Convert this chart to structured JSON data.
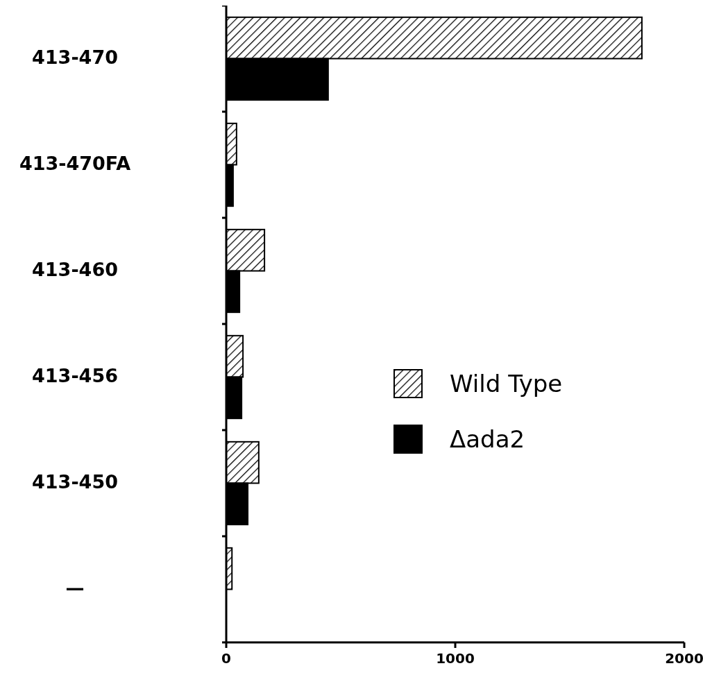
{
  "chart_data": {
    "type": "bar",
    "orientation": "horizontal",
    "categories": [
      "413-470",
      "413-470FA",
      "413-460",
      "413-456",
      "413-450",
      "—"
    ],
    "series": [
      {
        "name": "Wild Type",
        "color": "#000000",
        "values": [
          1815,
          45,
          167,
          73,
          142,
          25
        ]
      },
      {
        "name": "Δada2",
        "color": "#000000",
        "values": [
          445,
          30,
          58,
          67,
          94,
          null
        ]
      }
    ],
    "xlim": [
      0,
      2000
    ],
    "xticks": [
      0,
      1000,
      2000
    ],
    "legend": "right",
    "grid": false
  }
}
